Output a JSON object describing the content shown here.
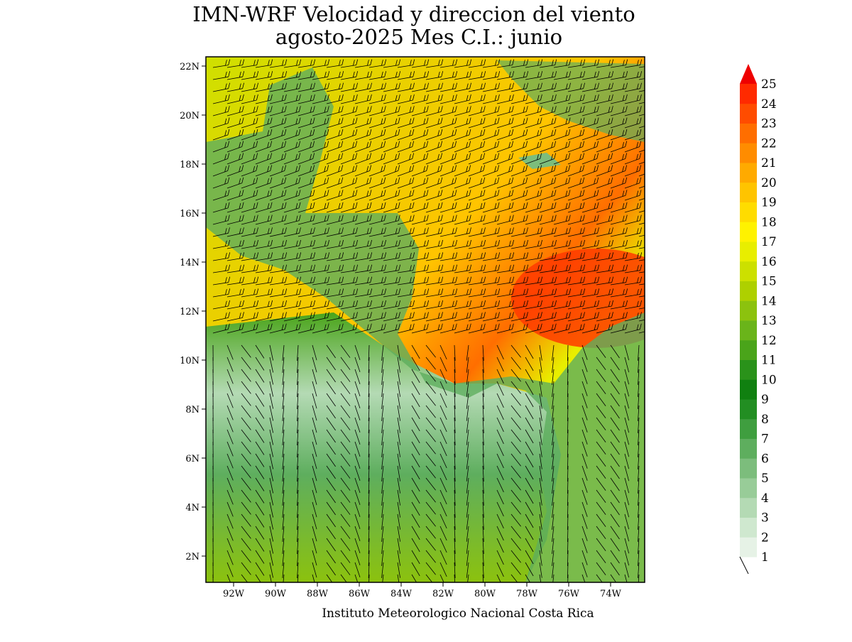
{
  "header": {
    "title": "IMN-WRF Velocidad y direccion del viento",
    "subtitle": "agosto-2025 Mes C.I.: junio"
  },
  "map": {
    "lat_labels": [
      "22N",
      "20N",
      "18N",
      "16N",
      "14N",
      "12N",
      "10N",
      "8N",
      "6N",
      "4N",
      "2N"
    ],
    "lon_labels": [
      "92W",
      "90W",
      "88W",
      "86W",
      "84W",
      "82W",
      "80W",
      "78W",
      "76W",
      "74W"
    ]
  },
  "colorbar": {
    "levels": [
      1,
      2,
      3,
      4,
      5,
      6,
      7,
      8,
      9,
      10,
      11,
      12,
      13,
      14,
      15,
      16,
      17,
      18,
      19,
      20,
      21,
      22,
      23,
      24,
      25
    ],
    "colors": [
      "#e6f2e6",
      "#cfe8cf",
      "#b4dab4",
      "#98cc98",
      "#7cbd7c",
      "#5eae5e",
      "#3f9e3f",
      "#228e22",
      "#108010",
      "#2a921a",
      "#4aa41a",
      "#6ab41a",
      "#8cc20e",
      "#aed000",
      "#cce000",
      "#e8ee00",
      "#fff200",
      "#ffdc00",
      "#ffc400",
      "#ffaa00",
      "#ff8c00",
      "#ff6e00",
      "#ff4c00",
      "#ff2a00"
    ],
    "top_color": "#ee0000"
  },
  "footer": "Instituto Meteorologico Nacional Costa Rica"
}
